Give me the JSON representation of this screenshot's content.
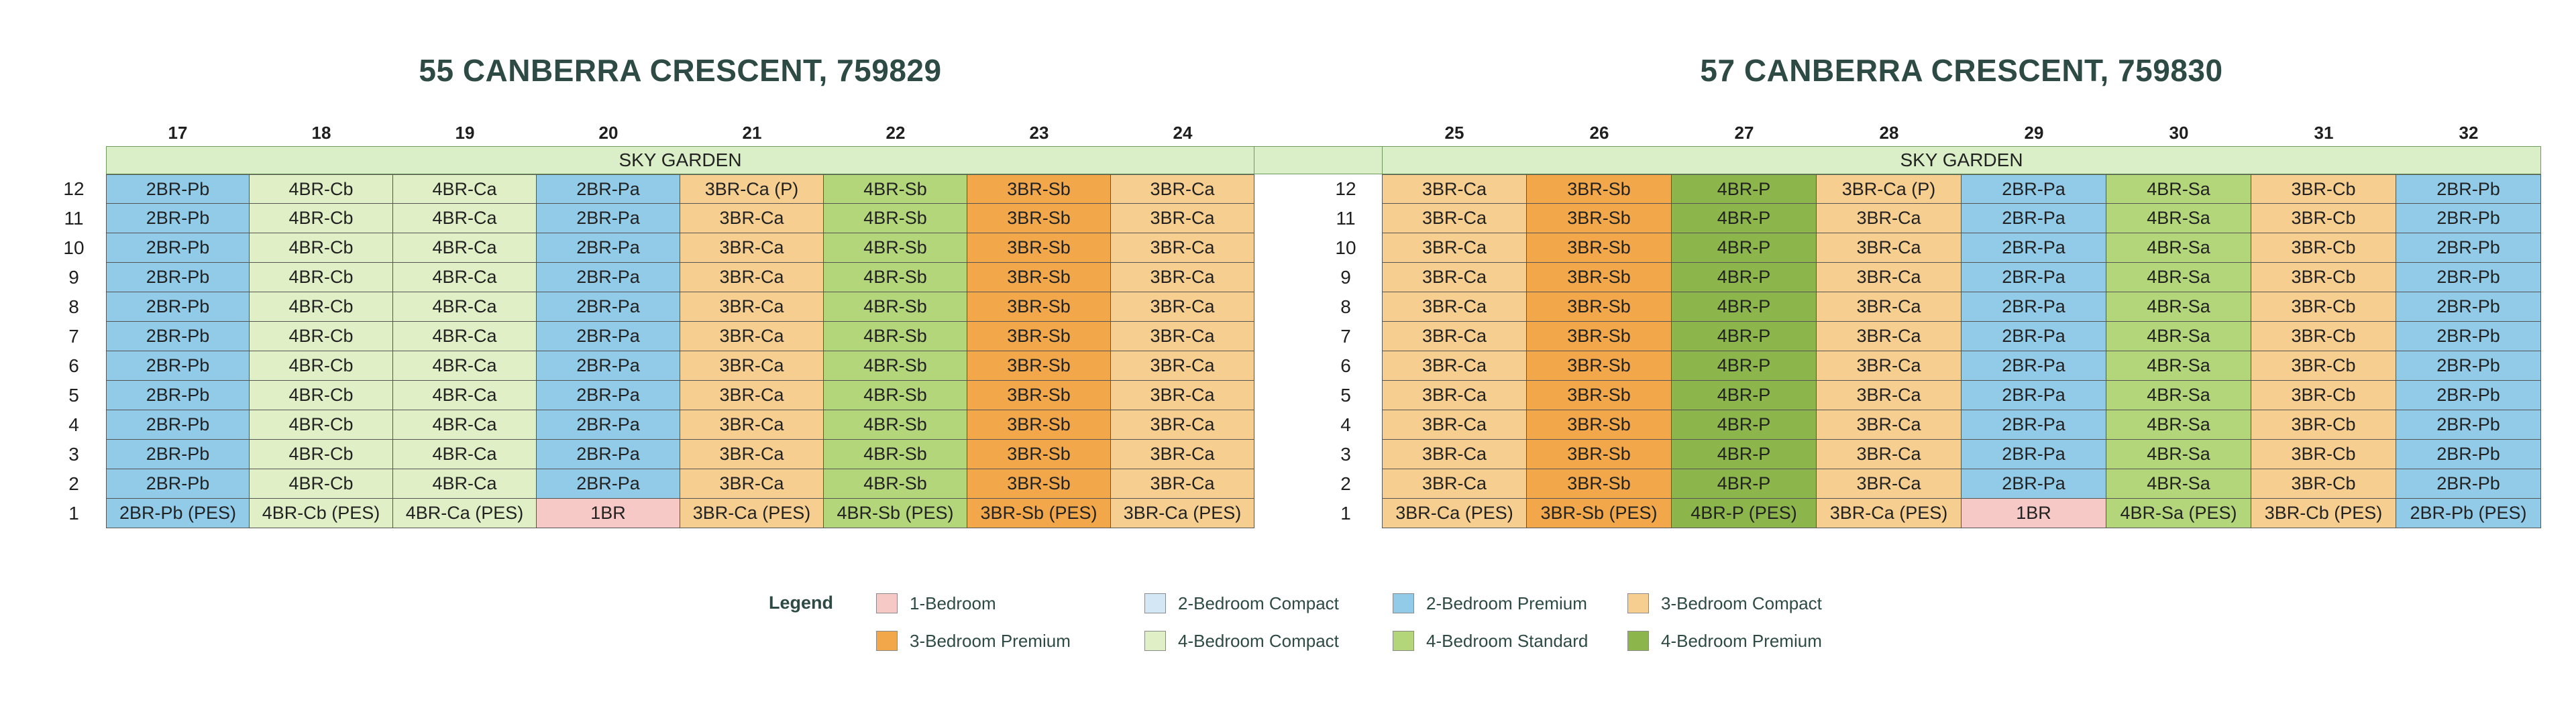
{
  "colors": {
    "1BR": "#f6c9c7",
    "2BRC": "#d3e8f4",
    "2BRP": "#91cbe8",
    "3BRC": "#f6ce90",
    "3BRP": "#f2a84a",
    "4BRC": "#e0efc5",
    "4BRS": "#b4d67a",
    "4BRP": "#8cb54b"
  },
  "blocks": [
    {
      "title": "55 CANBERRA CRESCENT, 759829",
      "sky_garden": "SKY GARDEN",
      "columns": [
        "17",
        "18",
        "19",
        "20",
        "21",
        "22",
        "23",
        "24"
      ],
      "floors": [
        {
          "floor": "12",
          "units": [
            {
              "t": "2BR-Pb",
              "c": "2BRP"
            },
            {
              "t": "4BR-Cb",
              "c": "4BRC"
            },
            {
              "t": "4BR-Ca",
              "c": "4BRC"
            },
            {
              "t": "2BR-Pa",
              "c": "2BRP"
            },
            {
              "t": "3BR-Ca (P)",
              "c": "3BRC"
            },
            {
              "t": "4BR-Sb",
              "c": "4BRS"
            },
            {
              "t": "3BR-Sb",
              "c": "3BRP"
            },
            {
              "t": "3BR-Ca",
              "c": "3BRC"
            }
          ]
        },
        {
          "floor": "11",
          "units": [
            {
              "t": "2BR-Pb",
              "c": "2BRP"
            },
            {
              "t": "4BR-Cb",
              "c": "4BRC"
            },
            {
              "t": "4BR-Ca",
              "c": "4BRC"
            },
            {
              "t": "2BR-Pa",
              "c": "2BRP"
            },
            {
              "t": "3BR-Ca",
              "c": "3BRC"
            },
            {
              "t": "4BR-Sb",
              "c": "4BRS"
            },
            {
              "t": "3BR-Sb",
              "c": "3BRP"
            },
            {
              "t": "3BR-Ca",
              "c": "3BRC"
            }
          ]
        },
        {
          "floor": "10",
          "units": [
            {
              "t": "2BR-Pb",
              "c": "2BRP"
            },
            {
              "t": "4BR-Cb",
              "c": "4BRC"
            },
            {
              "t": "4BR-Ca",
              "c": "4BRC"
            },
            {
              "t": "2BR-Pa",
              "c": "2BRP"
            },
            {
              "t": "3BR-Ca",
              "c": "3BRC"
            },
            {
              "t": "4BR-Sb",
              "c": "4BRS"
            },
            {
              "t": "3BR-Sb",
              "c": "3BRP"
            },
            {
              "t": "3BR-Ca",
              "c": "3BRC"
            }
          ]
        },
        {
          "floor": "9",
          "units": [
            {
              "t": "2BR-Pb",
              "c": "2BRP"
            },
            {
              "t": "4BR-Cb",
              "c": "4BRC"
            },
            {
              "t": "4BR-Ca",
              "c": "4BRC"
            },
            {
              "t": "2BR-Pa",
              "c": "2BRP"
            },
            {
              "t": "3BR-Ca",
              "c": "3BRC"
            },
            {
              "t": "4BR-Sb",
              "c": "4BRS"
            },
            {
              "t": "3BR-Sb",
              "c": "3BRP"
            },
            {
              "t": "3BR-Ca",
              "c": "3BRC"
            }
          ]
        },
        {
          "floor": "8",
          "units": [
            {
              "t": "2BR-Pb",
              "c": "2BRP"
            },
            {
              "t": "4BR-Cb",
              "c": "4BRC"
            },
            {
              "t": "4BR-Ca",
              "c": "4BRC"
            },
            {
              "t": "2BR-Pa",
              "c": "2BRP"
            },
            {
              "t": "3BR-Ca",
              "c": "3BRC"
            },
            {
              "t": "4BR-Sb",
              "c": "4BRS"
            },
            {
              "t": "3BR-Sb",
              "c": "3BRP"
            },
            {
              "t": "3BR-Ca",
              "c": "3BRC"
            }
          ]
        },
        {
          "floor": "7",
          "units": [
            {
              "t": "2BR-Pb",
              "c": "2BRP"
            },
            {
              "t": "4BR-Cb",
              "c": "4BRC"
            },
            {
              "t": "4BR-Ca",
              "c": "4BRC"
            },
            {
              "t": "2BR-Pa",
              "c": "2BRP"
            },
            {
              "t": "3BR-Ca",
              "c": "3BRC"
            },
            {
              "t": "4BR-Sb",
              "c": "4BRS"
            },
            {
              "t": "3BR-Sb",
              "c": "3BRP"
            },
            {
              "t": "3BR-Ca",
              "c": "3BRC"
            }
          ]
        },
        {
          "floor": "6",
          "units": [
            {
              "t": "2BR-Pb",
              "c": "2BRP"
            },
            {
              "t": "4BR-Cb",
              "c": "4BRC"
            },
            {
              "t": "4BR-Ca",
              "c": "4BRC"
            },
            {
              "t": "2BR-Pa",
              "c": "2BRP"
            },
            {
              "t": "3BR-Ca",
              "c": "3BRC"
            },
            {
              "t": "4BR-Sb",
              "c": "4BRS"
            },
            {
              "t": "3BR-Sb",
              "c": "3BRP"
            },
            {
              "t": "3BR-Ca",
              "c": "3BRC"
            }
          ]
        },
        {
          "floor": "5",
          "units": [
            {
              "t": "2BR-Pb",
              "c": "2BRP"
            },
            {
              "t": "4BR-Cb",
              "c": "4BRC"
            },
            {
              "t": "4BR-Ca",
              "c": "4BRC"
            },
            {
              "t": "2BR-Pa",
              "c": "2BRP"
            },
            {
              "t": "3BR-Ca",
              "c": "3BRC"
            },
            {
              "t": "4BR-Sb",
              "c": "4BRS"
            },
            {
              "t": "3BR-Sb",
              "c": "3BRP"
            },
            {
              "t": "3BR-Ca",
              "c": "3BRC"
            }
          ]
        },
        {
          "floor": "4",
          "units": [
            {
              "t": "2BR-Pb",
              "c": "2BRP"
            },
            {
              "t": "4BR-Cb",
              "c": "4BRC"
            },
            {
              "t": "4BR-Ca",
              "c": "4BRC"
            },
            {
              "t": "2BR-Pa",
              "c": "2BRP"
            },
            {
              "t": "3BR-Ca",
              "c": "3BRC"
            },
            {
              "t": "4BR-Sb",
              "c": "4BRS"
            },
            {
              "t": "3BR-Sb",
              "c": "3BRP"
            },
            {
              "t": "3BR-Ca",
              "c": "3BRC"
            }
          ]
        },
        {
          "floor": "3",
          "units": [
            {
              "t": "2BR-Pb",
              "c": "2BRP"
            },
            {
              "t": "4BR-Cb",
              "c": "4BRC"
            },
            {
              "t": "4BR-Ca",
              "c": "4BRC"
            },
            {
              "t": "2BR-Pa",
              "c": "2BRP"
            },
            {
              "t": "3BR-Ca",
              "c": "3BRC"
            },
            {
              "t": "4BR-Sb",
              "c": "4BRS"
            },
            {
              "t": "3BR-Sb",
              "c": "3BRP"
            },
            {
              "t": "3BR-Ca",
              "c": "3BRC"
            }
          ]
        },
        {
          "floor": "2",
          "units": [
            {
              "t": "2BR-Pb",
              "c": "2BRP"
            },
            {
              "t": "4BR-Cb",
              "c": "4BRC"
            },
            {
              "t": "4BR-Ca",
              "c": "4BRC"
            },
            {
              "t": "2BR-Pa",
              "c": "2BRP"
            },
            {
              "t": "3BR-Ca",
              "c": "3BRC"
            },
            {
              "t": "4BR-Sb",
              "c": "4BRS"
            },
            {
              "t": "3BR-Sb",
              "c": "3BRP"
            },
            {
              "t": "3BR-Ca",
              "c": "3BRC"
            }
          ]
        },
        {
          "floor": "1",
          "units": [
            {
              "t": "2BR-Pb (PES)",
              "c": "2BRP"
            },
            {
              "t": "4BR-Cb (PES)",
              "c": "4BRC"
            },
            {
              "t": "4BR-Ca (PES)",
              "c": "4BRC"
            },
            {
              "t": "1BR",
              "c": "1BR"
            },
            {
              "t": "3BR-Ca (PES)",
              "c": "3BRC"
            },
            {
              "t": "4BR-Sb (PES)",
              "c": "4BRS"
            },
            {
              "t": "3BR-Sb (PES)",
              "c": "3BRP"
            },
            {
              "t": "3BR-Ca (PES)",
              "c": "3BRC"
            }
          ]
        }
      ]
    },
    {
      "title": "57 CANBERRA CRESCENT, 759830",
      "sky_garden": "SKY GARDEN",
      "columns": [
        "25",
        "26",
        "27",
        "28",
        "29",
        "30",
        "31",
        "32"
      ],
      "floors": [
        {
          "floor": "12",
          "units": [
            {
              "t": "3BR-Ca",
              "c": "3BRC"
            },
            {
              "t": "3BR-Sb",
              "c": "3BRP"
            },
            {
              "t": "4BR-P",
              "c": "4BRP"
            },
            {
              "t": "3BR-Ca (P)",
              "c": "3BRC"
            },
            {
              "t": "2BR-Pa",
              "c": "2BRP"
            },
            {
              "t": "4BR-Sa",
              "c": "4BRS"
            },
            {
              "t": "3BR-Cb",
              "c": "3BRC"
            },
            {
              "t": "2BR-Pb",
              "c": "2BRP"
            }
          ]
        },
        {
          "floor": "11",
          "units": [
            {
              "t": "3BR-Ca",
              "c": "3BRC"
            },
            {
              "t": "3BR-Sb",
              "c": "3BRP"
            },
            {
              "t": "4BR-P",
              "c": "4BRP"
            },
            {
              "t": "3BR-Ca",
              "c": "3BRC"
            },
            {
              "t": "2BR-Pa",
              "c": "2BRP"
            },
            {
              "t": "4BR-Sa",
              "c": "4BRS"
            },
            {
              "t": "3BR-Cb",
              "c": "3BRC"
            },
            {
              "t": "2BR-Pb",
              "c": "2BRP"
            }
          ]
        },
        {
          "floor": "10",
          "units": [
            {
              "t": "3BR-Ca",
              "c": "3BRC"
            },
            {
              "t": "3BR-Sb",
              "c": "3BRP"
            },
            {
              "t": "4BR-P",
              "c": "4BRP"
            },
            {
              "t": "3BR-Ca",
              "c": "3BRC"
            },
            {
              "t": "2BR-Pa",
              "c": "2BRP"
            },
            {
              "t": "4BR-Sa",
              "c": "4BRS"
            },
            {
              "t": "3BR-Cb",
              "c": "3BRC"
            },
            {
              "t": "2BR-Pb",
              "c": "2BRP"
            }
          ]
        },
        {
          "floor": "9",
          "units": [
            {
              "t": "3BR-Ca",
              "c": "3BRC"
            },
            {
              "t": "3BR-Sb",
              "c": "3BRP"
            },
            {
              "t": "4BR-P",
              "c": "4BRP"
            },
            {
              "t": "3BR-Ca",
              "c": "3BRC"
            },
            {
              "t": "2BR-Pa",
              "c": "2BRP"
            },
            {
              "t": "4BR-Sa",
              "c": "4BRS"
            },
            {
              "t": "3BR-Cb",
              "c": "3BRC"
            },
            {
              "t": "2BR-Pb",
              "c": "2BRP"
            }
          ]
        },
        {
          "floor": "8",
          "units": [
            {
              "t": "3BR-Ca",
              "c": "3BRC"
            },
            {
              "t": "3BR-Sb",
              "c": "3BRP"
            },
            {
              "t": "4BR-P",
              "c": "4BRP"
            },
            {
              "t": "3BR-Ca",
              "c": "3BRC"
            },
            {
              "t": "2BR-Pa",
              "c": "2BRP"
            },
            {
              "t": "4BR-Sa",
              "c": "4BRS"
            },
            {
              "t": "3BR-Cb",
              "c": "3BRC"
            },
            {
              "t": "2BR-Pb",
              "c": "2BRP"
            }
          ]
        },
        {
          "floor": "7",
          "units": [
            {
              "t": "3BR-Ca",
              "c": "3BRC"
            },
            {
              "t": "3BR-Sb",
              "c": "3BRP"
            },
            {
              "t": "4BR-P",
              "c": "4BRP"
            },
            {
              "t": "3BR-Ca",
              "c": "3BRC"
            },
            {
              "t": "2BR-Pa",
              "c": "2BRP"
            },
            {
              "t": "4BR-Sa",
              "c": "4BRS"
            },
            {
              "t": "3BR-Cb",
              "c": "3BRC"
            },
            {
              "t": "2BR-Pb",
              "c": "2BRP"
            }
          ]
        },
        {
          "floor": "6",
          "units": [
            {
              "t": "3BR-Ca",
              "c": "3BRC"
            },
            {
              "t": "3BR-Sb",
              "c": "3BRP"
            },
            {
              "t": "4BR-P",
              "c": "4BRP"
            },
            {
              "t": "3BR-Ca",
              "c": "3BRC"
            },
            {
              "t": "2BR-Pa",
              "c": "2BRP"
            },
            {
              "t": "4BR-Sa",
              "c": "4BRS"
            },
            {
              "t": "3BR-Cb",
              "c": "3BRC"
            },
            {
              "t": "2BR-Pb",
              "c": "2BRP"
            }
          ]
        },
        {
          "floor": "5",
          "units": [
            {
              "t": "3BR-Ca",
              "c": "3BRC"
            },
            {
              "t": "3BR-Sb",
              "c": "3BRP"
            },
            {
              "t": "4BR-P",
              "c": "4BRP"
            },
            {
              "t": "3BR-Ca",
              "c": "3BRC"
            },
            {
              "t": "2BR-Pa",
              "c": "2BRP"
            },
            {
              "t": "4BR-Sa",
              "c": "4BRS"
            },
            {
              "t": "3BR-Cb",
              "c": "3BRC"
            },
            {
              "t": "2BR-Pb",
              "c": "2BRP"
            }
          ]
        },
        {
          "floor": "4",
          "units": [
            {
              "t": "3BR-Ca",
              "c": "3BRC"
            },
            {
              "t": "3BR-Sb",
              "c": "3BRP"
            },
            {
              "t": "4BR-P",
              "c": "4BRP"
            },
            {
              "t": "3BR-Ca",
              "c": "3BRC"
            },
            {
              "t": "2BR-Pa",
              "c": "2BRP"
            },
            {
              "t": "4BR-Sa",
              "c": "4BRS"
            },
            {
              "t": "3BR-Cb",
              "c": "3BRC"
            },
            {
              "t": "2BR-Pb",
              "c": "2BRP"
            }
          ]
        },
        {
          "floor": "3",
          "units": [
            {
              "t": "3BR-Ca",
              "c": "3BRC"
            },
            {
              "t": "3BR-Sb",
              "c": "3BRP"
            },
            {
              "t": "4BR-P",
              "c": "4BRP"
            },
            {
              "t": "3BR-Ca",
              "c": "3BRC"
            },
            {
              "t": "2BR-Pa",
              "c": "2BRP"
            },
            {
              "t": "4BR-Sa",
              "c": "4BRS"
            },
            {
              "t": "3BR-Cb",
              "c": "3BRC"
            },
            {
              "t": "2BR-Pb",
              "c": "2BRP"
            }
          ]
        },
        {
          "floor": "2",
          "units": [
            {
              "t": "3BR-Ca",
              "c": "3BRC"
            },
            {
              "t": "3BR-Sb",
              "c": "3BRP"
            },
            {
              "t": "4BR-P",
              "c": "4BRP"
            },
            {
              "t": "3BR-Ca",
              "c": "3BRC"
            },
            {
              "t": "2BR-Pa",
              "c": "2BRP"
            },
            {
              "t": "4BR-Sa",
              "c": "4BRS"
            },
            {
              "t": "3BR-Cb",
              "c": "3BRC"
            },
            {
              "t": "2BR-Pb",
              "c": "2BRP"
            }
          ]
        },
        {
          "floor": "1",
          "units": [
            {
              "t": "3BR-Ca (PES)",
              "c": "3BRC"
            },
            {
              "t": "3BR-Sb (PES)",
              "c": "3BRP"
            },
            {
              "t": "4BR-P (PES)",
              "c": "4BRP"
            },
            {
              "t": "3BR-Ca (PES)",
              "c": "3BRC"
            },
            {
              "t": "1BR",
              "c": "1BR"
            },
            {
              "t": "4BR-Sa (PES)",
              "c": "4BRS"
            },
            {
              "t": "3BR-Cb (PES)",
              "c": "3BRC"
            },
            {
              "t": "2BR-Pb (PES)",
              "c": "2BRP"
            }
          ]
        }
      ]
    }
  ],
  "legend": {
    "title": "Legend",
    "items": [
      {
        "label": "1-Bedroom",
        "c": "1BR"
      },
      {
        "label": "2-Bedroom Compact",
        "c": "2BRC"
      },
      {
        "label": "2-Bedroom Premium",
        "c": "2BRP"
      },
      {
        "label": "3-Bedroom Compact",
        "c": "3BRC"
      },
      {
        "label": "3-Bedroom Premium",
        "c": "3BRP"
      },
      {
        "label": "4-Bedroom Compact",
        "c": "4BRC"
      },
      {
        "label": "4-Bedroom Standard",
        "c": "4BRS"
      },
      {
        "label": "4-Bedroom Premium",
        "c": "4BRP"
      }
    ]
  }
}
